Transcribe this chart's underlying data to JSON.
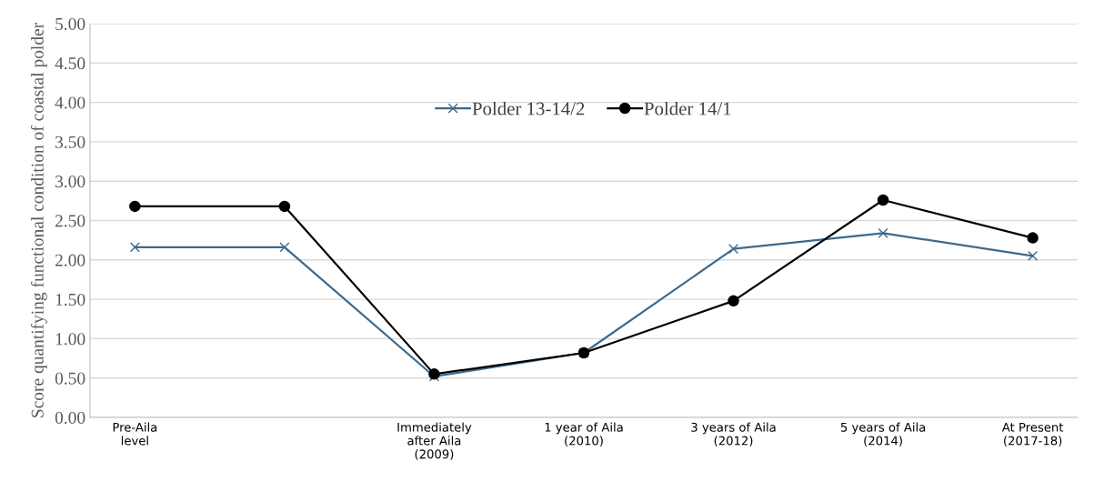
{
  "chart_data": {
    "type": "line",
    "ylabel": "Score quantifying functional condition of coastal polder",
    "categories": [
      "Pre-Aila\nlevel",
      null,
      "Immediately\nafter Aila\n(2009)",
      "1 year of Aila\n(2010)",
      "3 years of Aila\n(2012)",
      "5 years of Aila\n(2014)",
      "At Present\n(2017-18)"
    ],
    "ylim": [
      0,
      5
    ],
    "yticks": [
      {
        "value": 0,
        "label": "0.00"
      },
      {
        "value": 0.5,
        "label": "0.50"
      },
      {
        "value": 1,
        "label": "1.00"
      },
      {
        "value": 1.5,
        "label": "1.50"
      },
      {
        "value": 2,
        "label": "2.00"
      },
      {
        "value": 2.5,
        "label": "2.50"
      },
      {
        "value": 3,
        "label": "3.00"
      },
      {
        "value": 3.5,
        "label": "3.50"
      },
      {
        "value": 4,
        "label": "4.00"
      },
      {
        "value": 4.5,
        "label": "4.50"
      },
      {
        "value": 5,
        "label": "5.00"
      }
    ],
    "grid": "y",
    "legend": "top",
    "series": [
      {
        "name": "Polder 13-14/2",
        "color": "#3d6a8e",
        "marker": "cross",
        "values": [
          2.16,
          2.16,
          0.52,
          0.82,
          2.14,
          2.34,
          2.05
        ]
      },
      {
        "name": "Polder 14/1",
        "color": "#000000",
        "marker": "circle",
        "values": [
          2.68,
          2.68,
          0.55,
          0.82,
          1.48,
          2.76,
          2.28
        ]
      }
    ]
  }
}
